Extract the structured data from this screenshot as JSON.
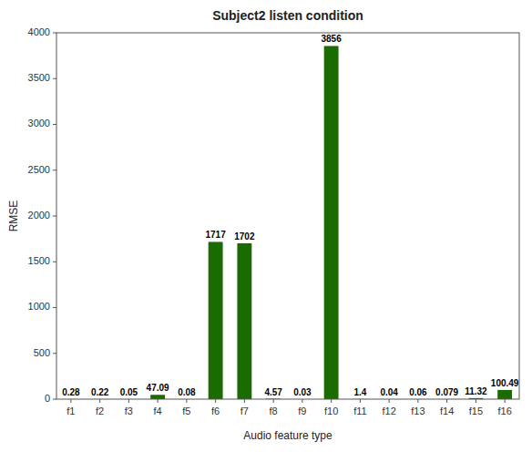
{
  "chart_data": {
    "type": "bar",
    "title": "Subject2 listen condition",
    "xlabel": "Audio feature type",
    "ylabel": "RMSE",
    "categories": [
      "f1",
      "f2",
      "f3",
      "f4",
      "f5",
      "f6",
      "f7",
      "f8",
      "f9",
      "f10",
      "f11",
      "f12",
      "f13",
      "f14",
      "f15",
      "f16"
    ],
    "values": [
      0.28,
      0.22,
      0.05,
      47.09,
      0.08,
      1717,
      1702,
      4.57,
      0.03,
      3856,
      1.4,
      0.04,
      0.06,
      0.079,
      11.32,
      100.49
    ],
    "color": "#1a6b00",
    "ylim": [
      0,
      4000
    ],
    "yticks": [
      0,
      500,
      1000,
      1500,
      2000,
      2500,
      3000,
      3500,
      4000
    ],
    "grid": false,
    "data_labels": true
  }
}
